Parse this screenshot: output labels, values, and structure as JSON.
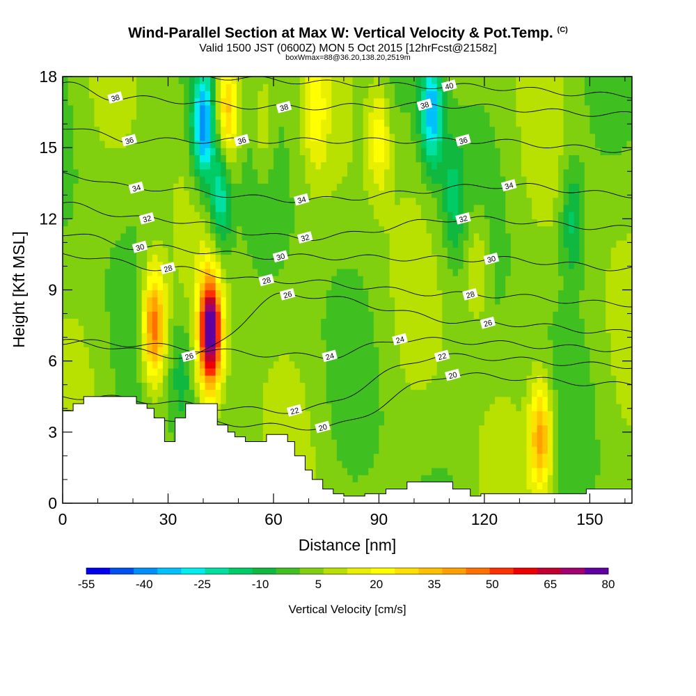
{
  "title": "Wind-Parallel Section at Max W: Vertical Velocity & Pot.Temp.",
  "title_mark": "(C)",
  "subtitle": "Valid 1500 JST (0600Z) MON 5 Oct 2015 [12hrFcst@2158z]",
  "subtitle2": "boxWmax=88@36.20,138.20,2519m",
  "chart_data": {
    "type": "heatmap",
    "xlabel": "Distance [nm]",
    "ylabel": "Height [Kft MSL]",
    "xlim": [
      0,
      162
    ],
    "ylim": [
      0,
      18
    ],
    "x_ticks": [
      0,
      30,
      60,
      90,
      120,
      150
    ],
    "y_ticks": [
      0,
      3,
      6,
      9,
      12,
      15,
      18
    ],
    "colorbar": {
      "label": "Vertical Velocity [cm/s]",
      "tick_labels": [
        -55,
        -40,
        -25,
        -10,
        5,
        20,
        35,
        50,
        65,
        80
      ],
      "colors": [
        "#0000ee",
        "#0050f0",
        "#0090f8",
        "#00c0ff",
        "#00eeee",
        "#00e0a0",
        "#00cc66",
        "#10b840",
        "#40c020",
        "#80d010",
        "#b8e000",
        "#e8f000",
        "#ffff00",
        "#ffe000",
        "#ffc000",
        "#ffa000",
        "#ff7000",
        "#ff3000",
        "#ee0000",
        "#c00030",
        "#a00070",
        "#6000a0"
      ]
    },
    "velocity_features": [
      {
        "x": 26,
        "z": 7.5,
        "w": 48
      },
      {
        "x": 42,
        "z": 7.2,
        "w": 78
      },
      {
        "x": 34,
        "z": 5.5,
        "w": -12
      },
      {
        "x": 40,
        "z": 16.0,
        "w": -45
      },
      {
        "x": 45,
        "z": 13.0,
        "w": -28
      },
      {
        "x": 47,
        "z": 16.5,
        "w": 32
      },
      {
        "x": 105,
        "z": 16.5,
        "w": -38
      },
      {
        "x": 111,
        "z": 13.0,
        "w": -15
      },
      {
        "x": 136,
        "z": 2.8,
        "w": 38
      },
      {
        "x": 57,
        "z": 16.0,
        "w": 12
      },
      {
        "x": 72,
        "z": 16.5,
        "w": 15
      },
      {
        "x": 90,
        "z": 15.5,
        "w": 20
      },
      {
        "x": 118,
        "z": 10.0,
        "w": 15
      },
      {
        "x": 145,
        "z": 12.0,
        "w": -18
      }
    ],
    "isotherms": [
      {
        "label": "20",
        "label_x": 74,
        "label_z": 3.2
      },
      {
        "label": "20",
        "label_x": 111,
        "label_z": 5.4
      },
      {
        "label": "22",
        "label_x": 66,
        "label_z": 3.9
      },
      {
        "label": "22",
        "label_x": 108,
        "label_z": 6.2
      },
      {
        "label": "24",
        "label_x": 76,
        "label_z": 6.2
      },
      {
        "label": "24",
        "label_x": 96,
        "label_z": 6.9
      },
      {
        "label": "26",
        "label_x": 36,
        "label_z": 6.2
      },
      {
        "label": "26",
        "label_x": 64,
        "label_z": 8.8
      },
      {
        "label": "26",
        "label_x": 121,
        "label_z": 7.6
      },
      {
        "label": "28",
        "label_x": 30,
        "label_z": 9.9
      },
      {
        "label": "28",
        "label_x": 58,
        "label_z": 9.4
      },
      {
        "label": "28",
        "label_x": 116,
        "label_z": 8.8
      },
      {
        "label": "30",
        "label_x": 22,
        "label_z": 10.8
      },
      {
        "label": "30",
        "label_x": 62,
        "label_z": 10.4
      },
      {
        "label": "30",
        "label_x": 122,
        "label_z": 10.3
      },
      {
        "label": "32",
        "label_x": 24,
        "label_z": 12.0
      },
      {
        "label": "32",
        "label_x": 69,
        "label_z": 11.2
      },
      {
        "label": "32",
        "label_x": 114,
        "label_z": 12.0
      },
      {
        "label": "34",
        "label_x": 21,
        "label_z": 13.3
      },
      {
        "label": "34",
        "label_x": 68,
        "label_z": 12.8
      },
      {
        "label": "34",
        "label_x": 127,
        "label_z": 13.4
      },
      {
        "label": "36",
        "label_x": 19,
        "label_z": 15.3
      },
      {
        "label": "36",
        "label_x": 51,
        "label_z": 15.3
      },
      {
        "label": "36",
        "label_x": 114,
        "label_z": 15.3
      },
      {
        "label": "38",
        "label_x": 15,
        "label_z": 17.1
      },
      {
        "label": "38",
        "label_x": 63,
        "label_z": 16.7
      },
      {
        "label": "38",
        "label_x": 103,
        "label_z": 16.8
      },
      {
        "label": "40",
        "label_x": 110,
        "label_z": 17.6
      }
    ],
    "terrain": [
      [
        0,
        3.9
      ],
      [
        3,
        3.9
      ],
      [
        3,
        4.2
      ],
      [
        6,
        4.2
      ],
      [
        6,
        4.5
      ],
      [
        21,
        4.5
      ],
      [
        21,
        4.2
      ],
      [
        24,
        4.2
      ],
      [
        24,
        4.0
      ],
      [
        26,
        4.0
      ],
      [
        26,
        3.6
      ],
      [
        29,
        3.6
      ],
      [
        29,
        2.6
      ],
      [
        32,
        2.6
      ],
      [
        32,
        3.6
      ],
      [
        35,
        3.6
      ],
      [
        35,
        4.2
      ],
      [
        44,
        4.2
      ],
      [
        44,
        3.3
      ],
      [
        47,
        3.3
      ],
      [
        47,
        3.0
      ],
      [
        49,
        3.0
      ],
      [
        49,
        2.8
      ],
      [
        52,
        2.8
      ],
      [
        52,
        2.6
      ],
      [
        58,
        2.6
      ],
      [
        58,
        2.9
      ],
      [
        64,
        2.9
      ],
      [
        64,
        2.6
      ],
      [
        66,
        2.6
      ],
      [
        66,
        2.0
      ],
      [
        69,
        2.0
      ],
      [
        69,
        1.4
      ],
      [
        71,
        1.4
      ],
      [
        71,
        1.0
      ],
      [
        74,
        1.0
      ],
      [
        74,
        0.6
      ],
      [
        77,
        0.6
      ],
      [
        77,
        0.4
      ],
      [
        80,
        0.4
      ],
      [
        80,
        0.3
      ],
      [
        86,
        0.3
      ],
      [
        86,
        0.4
      ],
      [
        92,
        0.4
      ],
      [
        92,
        0.6
      ],
      [
        98,
        0.6
      ],
      [
        98,
        0.9
      ],
      [
        111,
        0.9
      ],
      [
        111,
        0.6
      ],
      [
        116,
        0.6
      ],
      [
        116,
        0.3
      ],
      [
        119,
        0.3
      ],
      [
        119,
        0.4
      ],
      [
        149,
        0.4
      ],
      [
        149,
        0.6
      ],
      [
        162,
        0.6
      ]
    ]
  }
}
